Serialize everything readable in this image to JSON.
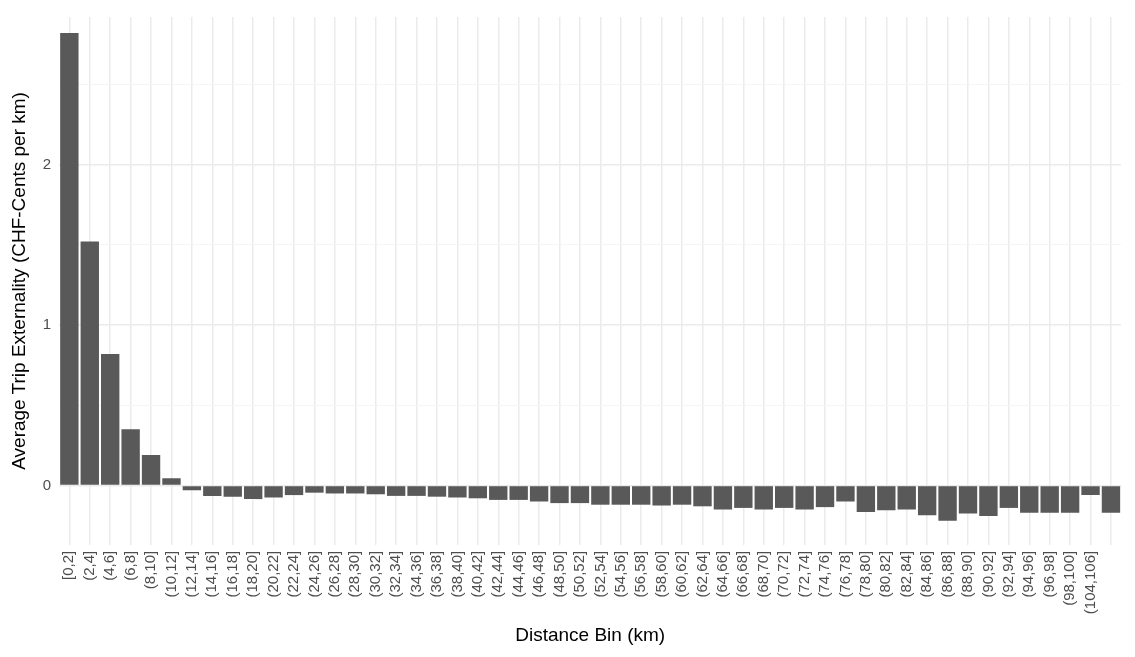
{
  "chart_data": {
    "type": "bar",
    "xlabel": "Distance Bin (km)",
    "ylabel": "Average Trip Externality (CHF-Cents per km)",
    "categories": [
      "[0,2]",
      "(2,4]",
      "(4,6]",
      "(6,8]",
      "(8,10]",
      "(10,12]",
      "(12,14]",
      "(14,16]",
      "(16,18]",
      "(18,20]",
      "(20,22]",
      "(22,24]",
      "(24,26]",
      "(26,28]",
      "(28,30]",
      "(30,32]",
      "(32,34]",
      "(34,36]",
      "(36,38]",
      "(38,40]",
      "(40,42]",
      "(42,44]",
      "(44,46]",
      "(46,48]",
      "(48,50]",
      "(50,52]",
      "(52,54]",
      "(54,56]",
      "(56,58]",
      "(58,60]",
      "(60,62]",
      "(62,64]",
      "(64,66]",
      "(66,68]",
      "(68,70]",
      "(70,72]",
      "(72,74]",
      "(74,76]",
      "(76,78]",
      "(78,80]",
      "(80,82]",
      "(82,84]",
      "(84,86]",
      "(86,88]",
      "(88,90]",
      "(90,92]",
      "(92,94]",
      "(94,96]",
      "(96,98]",
      "(98,100]",
      "(104,106]",
      null
    ],
    "values": [
      2.82,
      1.52,
      0.82,
      0.35,
      0.19,
      0.045,
      -0.03,
      -0.065,
      -0.07,
      -0.085,
      -0.075,
      -0.06,
      -0.045,
      -0.05,
      -0.05,
      -0.055,
      -0.065,
      -0.065,
      -0.07,
      -0.075,
      -0.08,
      -0.09,
      -0.09,
      -0.1,
      -0.11,
      -0.11,
      -0.12,
      -0.12,
      -0.12,
      -0.125,
      -0.12,
      -0.13,
      -0.15,
      -0.14,
      -0.15,
      -0.14,
      -0.15,
      -0.135,
      -0.1,
      -0.165,
      -0.155,
      -0.15,
      -0.185,
      -0.22,
      -0.175,
      -0.19,
      -0.14,
      -0.17,
      -0.17,
      -0.17,
      -0.06,
      -0.17
    ],
    "color": "#595959",
    "ylim": [
      -0.37,
      2.92
    ],
    "yticks": [
      0,
      {
        "value": 0.5,
        "label": null
      },
      1,
      {
        "value": 1.5,
        "label": null
      },
      2,
      {
        "value": 2.5,
        "label": null
      }
    ],
    "grid": true,
    "legend": false
  }
}
